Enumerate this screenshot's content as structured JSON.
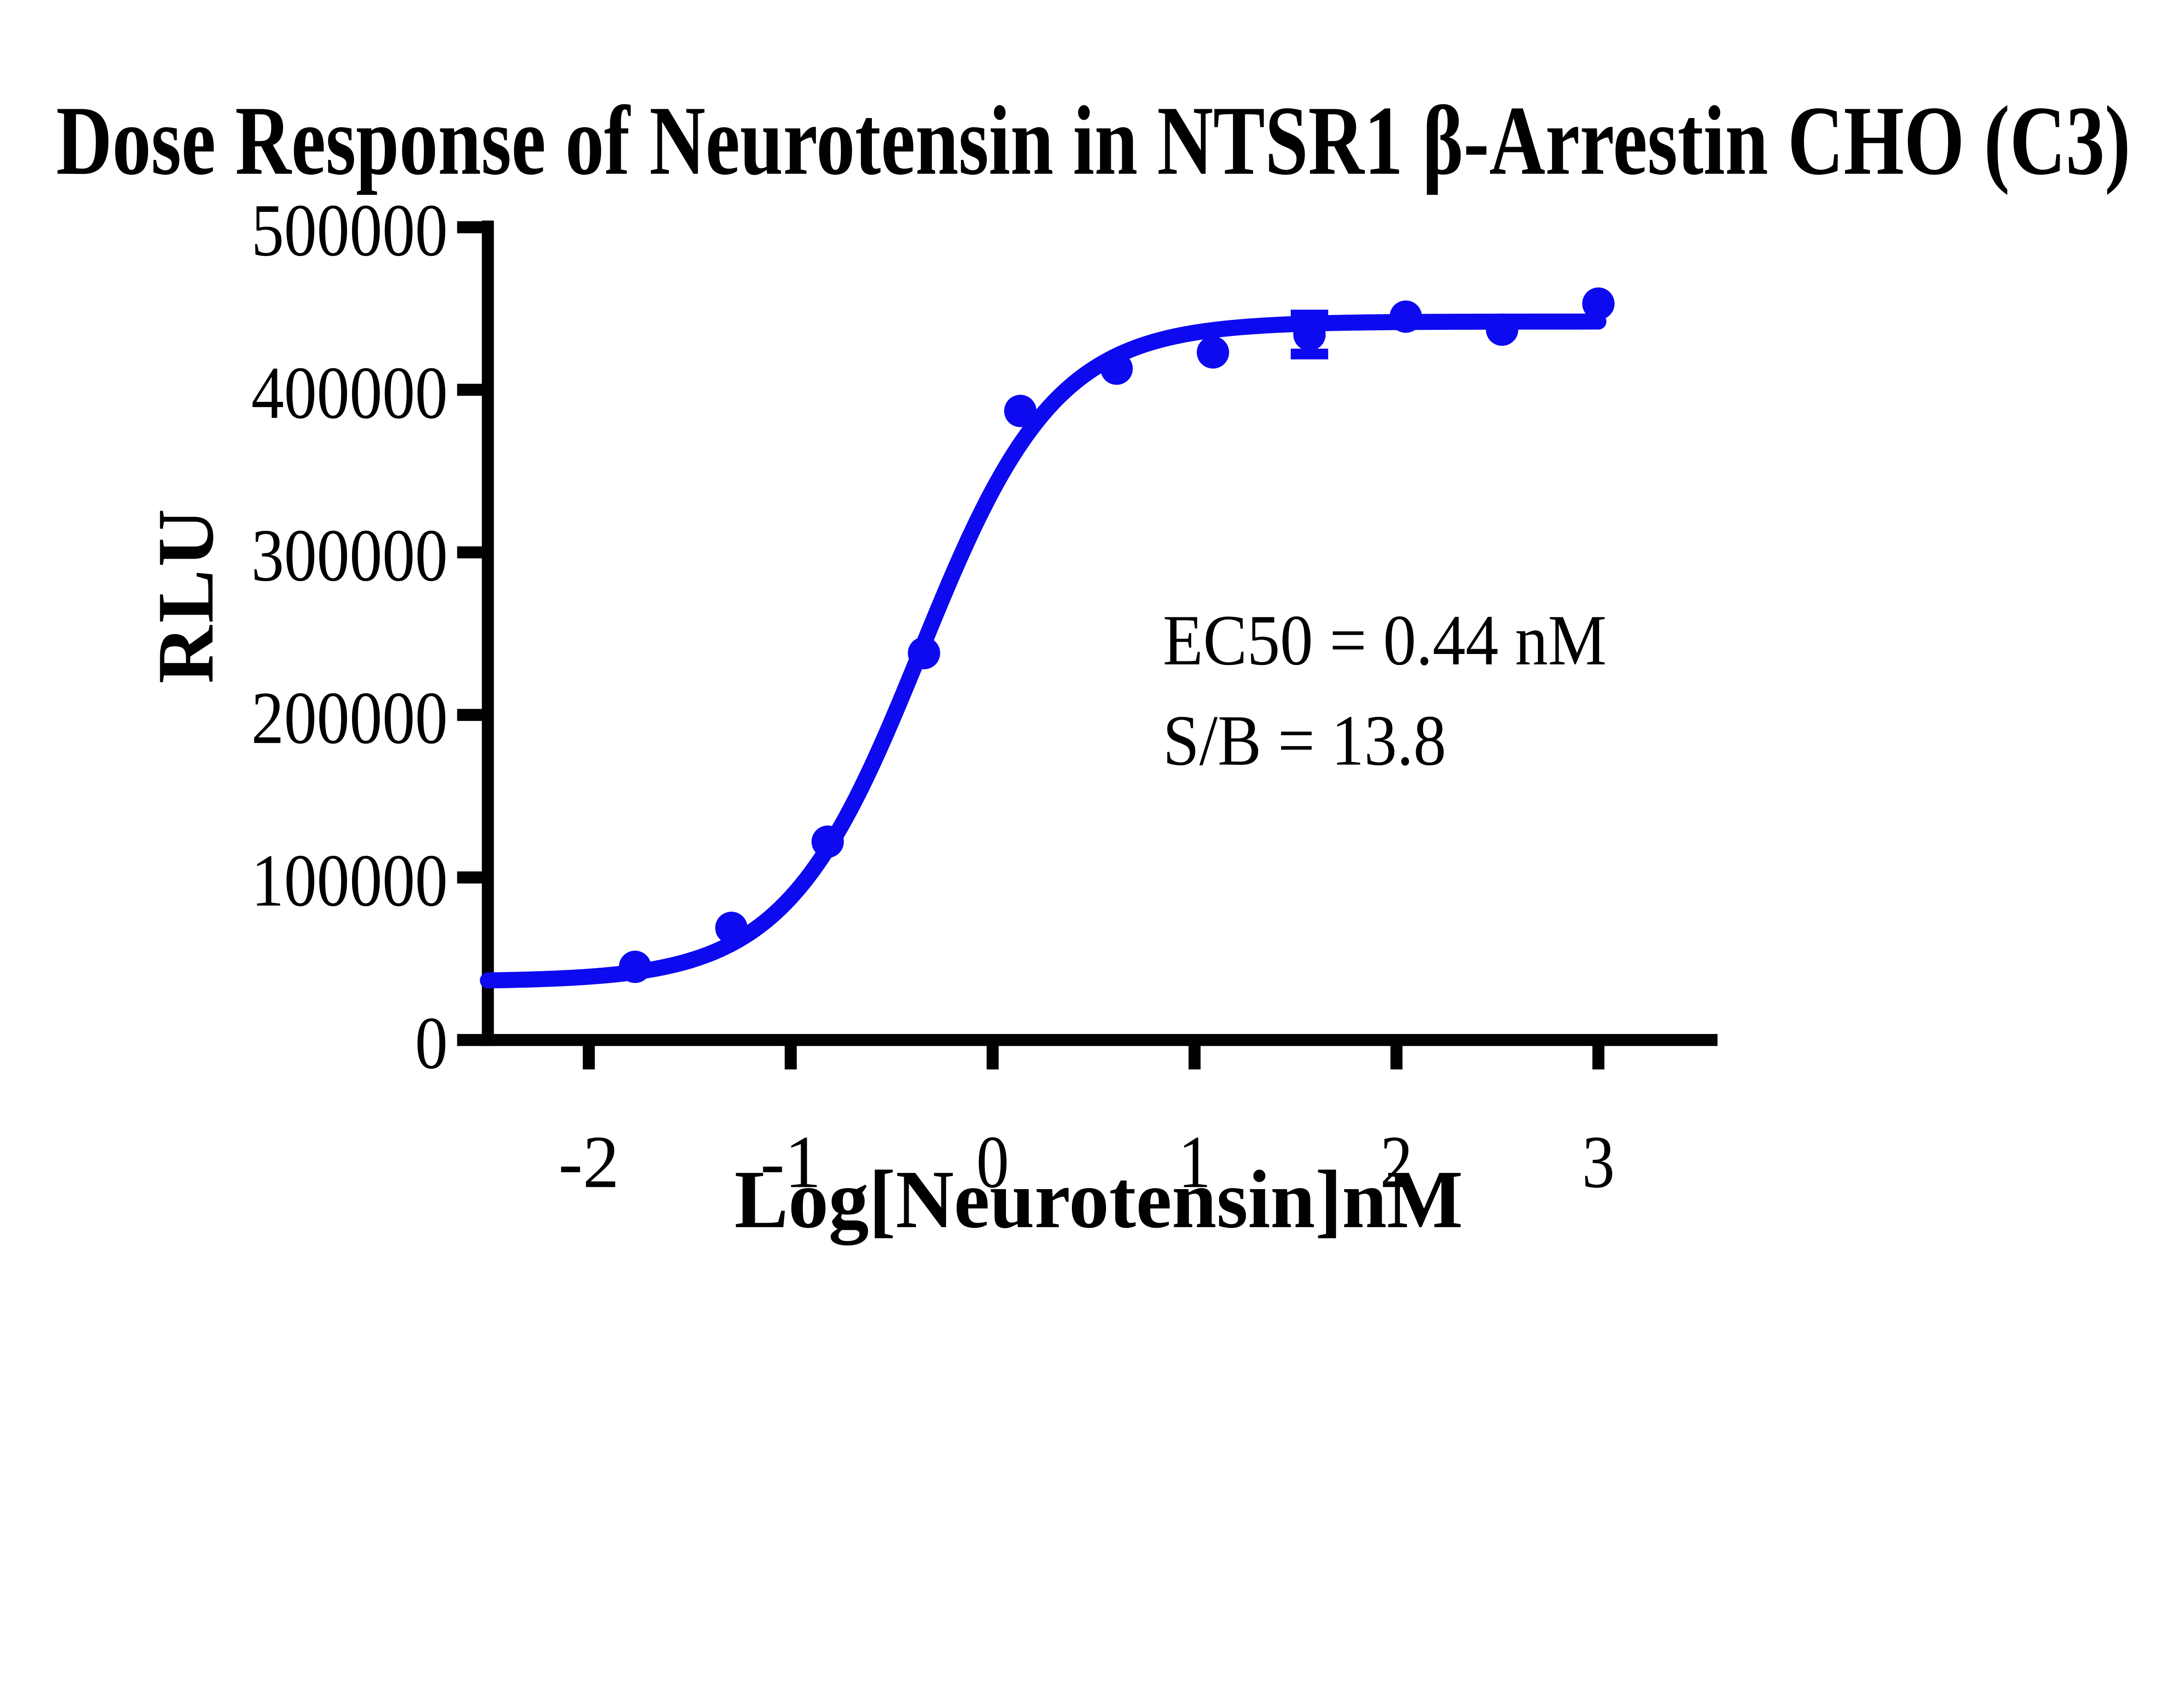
{
  "page": {
    "background_color": "#ffffff",
    "accent_color": "#0d0af0",
    "axis_color": "#000000"
  },
  "annotation": {
    "ec50": "EC50 = 0.44 nM",
    "sb": "S/B = 13.8"
  },
  "chart_data": {
    "type": "scatter",
    "title": "Dose Response of Neurotensin in NTSR1 β-Arrestin CHO (C3)",
    "xlabel": "Log[Neurotensin]nM",
    "ylabel": "RLU",
    "xlim": [
      -2.5,
      3.59
    ],
    "ylim": [
      0,
      500000
    ],
    "x_ticks": [
      -2,
      -1,
      0,
      1,
      2,
      3
    ],
    "y_ticks": [
      0,
      100000,
      200000,
      300000,
      400000,
      500000
    ],
    "grid": false,
    "legend_position": "none",
    "series": [
      {
        "name": "Neurotensin",
        "color": "#0d0af0",
        "marker": "circle",
        "x": [
          -1.771,
          -1.294,
          -0.817,
          -0.34,
          0.137,
          0.614,
          1.091,
          1.569,
          2.046,
          2.523,
          3.0
        ],
        "y": [
          45000,
          69000,
          122000,
          238000,
          387000,
          413000,
          423000,
          434000,
          445000,
          437000,
          453000
        ],
        "error_bars": [
          {
            "x": 1.569,
            "y": 434000,
            "sd": 12000
          }
        ],
        "fit_curve": {
          "model": "four-parameter-logistic",
          "bottom": 36000,
          "top": 442000,
          "log_ec50": -0.357,
          "hill_slope": 1.3,
          "x_start": -2.5,
          "x_end": 3.0
        }
      }
    ],
    "annotations": [
      {
        "text": "EC50 = 0.44 nM"
      },
      {
        "text": "S/B = 13.8"
      }
    ]
  }
}
